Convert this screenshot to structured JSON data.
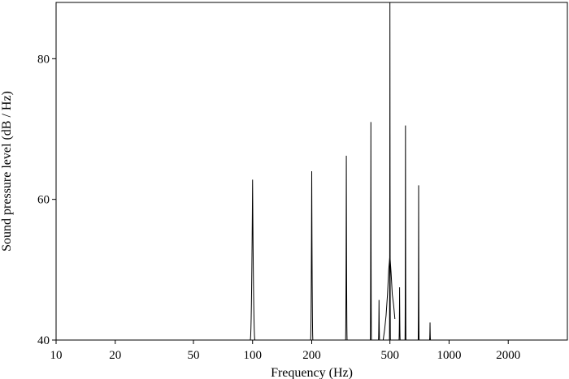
{
  "chart_data": {
    "type": "line",
    "title": "",
    "xlabel": "Frequency (Hz)",
    "ylabel": "Sound pressure level (dB / Hz)",
    "xscale": "log",
    "xlim": [
      10,
      4000
    ],
    "ylim": [
      40,
      88
    ],
    "grid": false,
    "legend": "none",
    "x_ticks": [
      10,
      20,
      50,
      100,
      200,
      500,
      1000,
      2000
    ],
    "x_tick_labels": [
      "10",
      "20",
      "50",
      "100",
      "200",
      "500",
      "1000",
      "2000"
    ],
    "y_ticks": [
      40,
      60,
      80
    ],
    "y_tick_labels": [
      "40",
      "60",
      "80"
    ],
    "line_color": "#000000",
    "peaks": [
      {
        "freq": 100,
        "level": 62.8,
        "halfwidth": 0.012
      },
      {
        "freq": 200,
        "level": 64.0,
        "halfwidth": 0.006
      },
      {
        "freq": 300,
        "level": 66.2,
        "halfwidth": 0.004
      },
      {
        "freq": 400,
        "level": 71.0,
        "halfwidth": 0.003
      },
      {
        "freq": 440,
        "level": 45.7,
        "halfwidth": 0.003
      },
      {
        "freq": 500,
        "level": 88.0,
        "halfwidth": 0.0025
      },
      {
        "freq": 560,
        "level": 47.5,
        "halfwidth": 0.003
      },
      {
        "freq": 600,
        "level": 70.5,
        "halfwidth": 0.0025
      },
      {
        "freq": 700,
        "level": 62.0,
        "halfwidth": 0.0025
      },
      {
        "freq": 800,
        "level": 42.5,
        "halfwidth": 0.0025
      }
    ],
    "envelope": [
      {
        "freq": 462,
        "level": 40.0
      },
      {
        "freq": 470,
        "level": 41.5
      },
      {
        "freq": 478,
        "level": 43.5
      },
      {
        "freq": 486,
        "level": 46.5
      },
      {
        "freq": 493,
        "level": 50.0
      },
      {
        "freq": 500,
        "level": 52.0
      },
      {
        "freq": 507,
        "level": 49.5
      },
      {
        "freq": 514,
        "level": 46.5
      },
      {
        "freq": 522,
        "level": 45.0
      },
      {
        "freq": 530,
        "level": 43.0
      }
    ]
  }
}
